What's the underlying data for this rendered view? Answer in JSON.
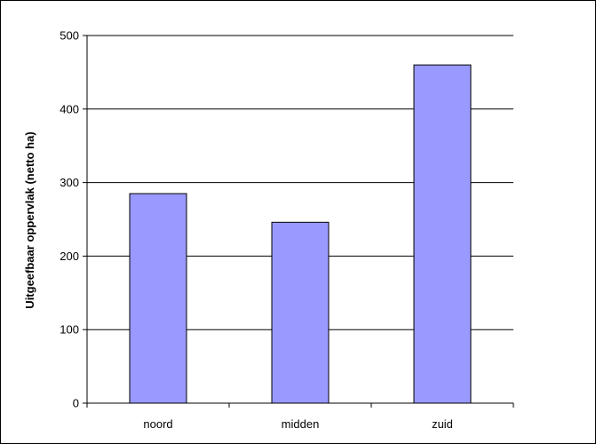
{
  "chart_data": {
    "type": "bar",
    "title": "",
    "xlabel": "",
    "ylabel": "Uitgeefbaar oppervlak (netto ha)",
    "categories": [
      "noord",
      "midden",
      "zuid"
    ],
    "values": [
      285,
      246,
      460
    ],
    "ylim": [
      0,
      500
    ],
    "yticks": [
      0,
      100,
      200,
      300,
      400,
      500
    ],
    "grid": true,
    "legend": "none",
    "colors": {
      "bar_fill": "#9999ff",
      "bar_stroke": "#000000",
      "gridline": "#000000",
      "axis": "#000000"
    }
  }
}
